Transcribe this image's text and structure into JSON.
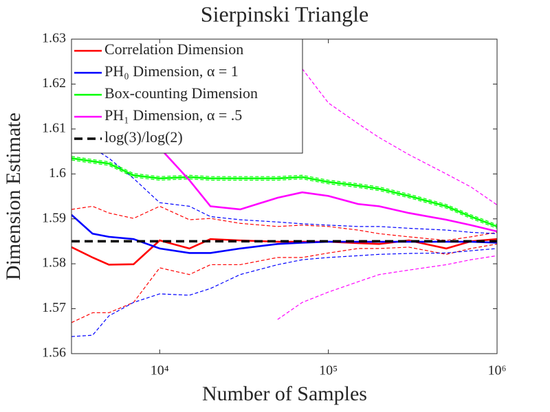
{
  "chart_data": {
    "type": "line",
    "title": "Sierpinski Triangle",
    "xlabel": "Number of Samples",
    "ylabel": "Dimension Estimate",
    "xscale": "log",
    "legend": "upper left",
    "x": [
      3000,
      4000,
      5000,
      7000,
      10000,
      15000,
      20000,
      30000,
      50000,
      70000,
      100000,
      150000,
      200000,
      300000,
      500000,
      700000,
      1000000
    ],
    "xlim": [
      3000,
      1000000
    ],
    "xticks": [
      {
        "value": 10000,
        "label": "10⁴"
      },
      {
        "value": 100000,
        "label": "10⁵"
      },
      {
        "value": 1000000,
        "label": "10⁶"
      }
    ],
    "ylim": [
      1.56,
      1.63
    ],
    "yticks": [
      1.56,
      1.57,
      1.58,
      1.59,
      1.6,
      1.61,
      1.62,
      1.63
    ],
    "series": [
      {
        "name": "Correlation Dimension",
        "color": "#ff0000",
        "values": [
          1.5837,
          1.5814,
          1.5798,
          1.5799,
          1.5852,
          1.5834,
          1.5855,
          1.5852,
          1.5849,
          1.5849,
          1.5849,
          1.5846,
          1.5844,
          1.5852,
          1.5834,
          1.585,
          1.5855
        ],
        "upper": [
          1.5921,
          1.5928,
          1.5913,
          1.5901,
          1.5928,
          1.5898,
          1.5901,
          1.589,
          1.5883,
          1.5886,
          1.5883,
          1.5875,
          1.5867,
          1.586,
          1.5852,
          1.586,
          1.587
        ],
        "lower": [
          1.5669,
          1.5691,
          1.5691,
          1.5714,
          1.5791,
          1.5776,
          1.5798,
          1.5798,
          1.5814,
          1.5814,
          1.5824,
          1.5834,
          1.5834,
          1.5837,
          1.5821,
          1.5834,
          1.5844
        ]
      },
      {
        "name": "PH₀ Dimension, α = 1",
        "color": "#0000ff",
        "values": [
          1.5909,
          1.5867,
          1.586,
          1.5855,
          1.5834,
          1.5824,
          1.5824,
          1.5834,
          1.5844,
          1.5847,
          1.5849,
          1.5849,
          1.5849,
          1.5849,
          1.5849,
          1.5849,
          1.5847
        ],
        "upper": [
          1.6081,
          1.6058,
          1.6035,
          1.599,
          1.5936,
          1.5928,
          1.5905,
          1.5898,
          1.5893,
          1.5889,
          1.5886,
          1.5883,
          1.5883,
          1.5879,
          1.5875,
          1.587,
          1.5867
        ],
        "lower": [
          1.5638,
          1.5641,
          1.5684,
          1.5714,
          1.5733,
          1.573,
          1.5745,
          1.5776,
          1.5798,
          1.5809,
          1.5814,
          1.5818,
          1.5821,
          1.5823,
          1.5824,
          1.5829,
          1.5834
        ]
      },
      {
        "name": "Box-counting Dimension",
        "color": "#00ff00",
        "values": [
          1.6035,
          1.6028,
          1.6023,
          1.5997,
          1.599,
          1.5993,
          1.599,
          1.599,
          1.599,
          1.5993,
          1.5982,
          1.5974,
          1.5967,
          1.5951,
          1.5928,
          1.5905,
          1.5883
        ],
        "upper": [
          1.6039,
          1.6032,
          1.6027,
          1.6001,
          1.5994,
          1.5997,
          1.5994,
          1.5994,
          1.5994,
          1.5997,
          1.5986,
          1.5978,
          1.5971,
          1.5955,
          1.5932,
          1.5909,
          1.5887
        ],
        "lower": [
          1.6031,
          1.6024,
          1.6019,
          1.5993,
          1.5986,
          1.5989,
          1.5986,
          1.5986,
          1.5986,
          1.5989,
          1.5978,
          1.597,
          1.5963,
          1.5947,
          1.5924,
          1.5901,
          1.5879
        ]
      },
      {
        "name": "PH₁ Dimension, α = .5",
        "color": "#ff00ff",
        "values": [
          null,
          null,
          null,
          null,
          1.6058,
          1.5986,
          1.5928,
          1.5921,
          1.5947,
          1.5959,
          1.5951,
          1.5933,
          1.5928,
          1.5913,
          1.5898,
          1.5886,
          1.5872
        ],
        "upper": [
          null,
          null,
          null,
          null,
          null,
          null,
          null,
          null,
          null,
          1.6234,
          1.6158,
          1.6112,
          1.6081,
          1.6043,
          1.6,
          1.5971,
          1.5931
        ],
        "lower": [
          null,
          null,
          null,
          null,
          null,
          null,
          null,
          null,
          1.5676,
          1.5714,
          1.5737,
          1.576,
          1.5776,
          1.5786,
          1.5798,
          1.5809,
          1.5818
        ]
      },
      {
        "name": "log(3)/log(2)",
        "color": "#000000",
        "dashed": true,
        "values": [
          1.585,
          1.585,
          1.585,
          1.585,
          1.585,
          1.585,
          1.585,
          1.585,
          1.585,
          1.585,
          1.585,
          1.585,
          1.585,
          1.585,
          1.585,
          1.585,
          1.585
        ]
      }
    ]
  }
}
